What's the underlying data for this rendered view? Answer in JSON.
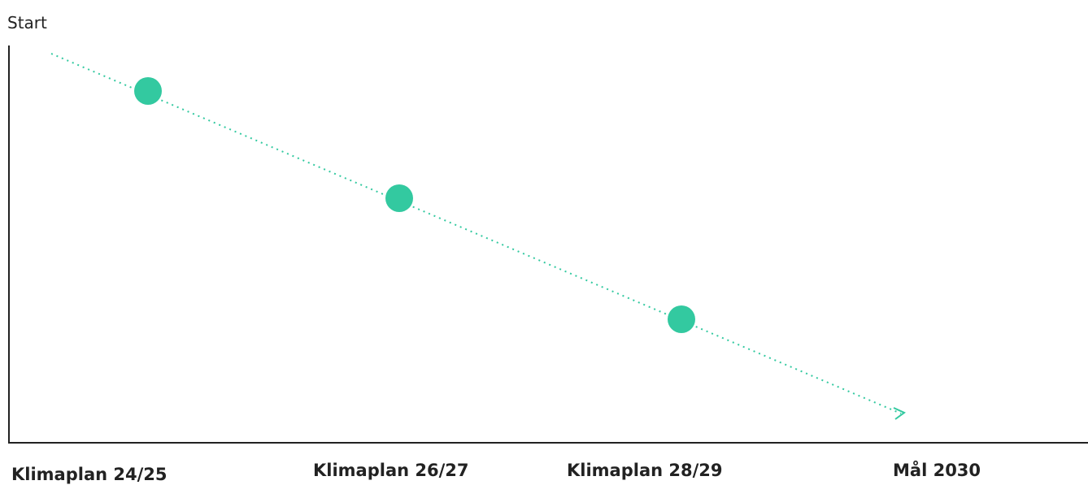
{
  "start_label": "Start",
  "milestones": [
    {
      "label": "Klimaplan 24/25"
    },
    {
      "label": "Klimaplan 26/27"
    },
    {
      "label": "Klimaplan 28/29"
    },
    {
      "label": "Mål 2030"
    }
  ]
}
